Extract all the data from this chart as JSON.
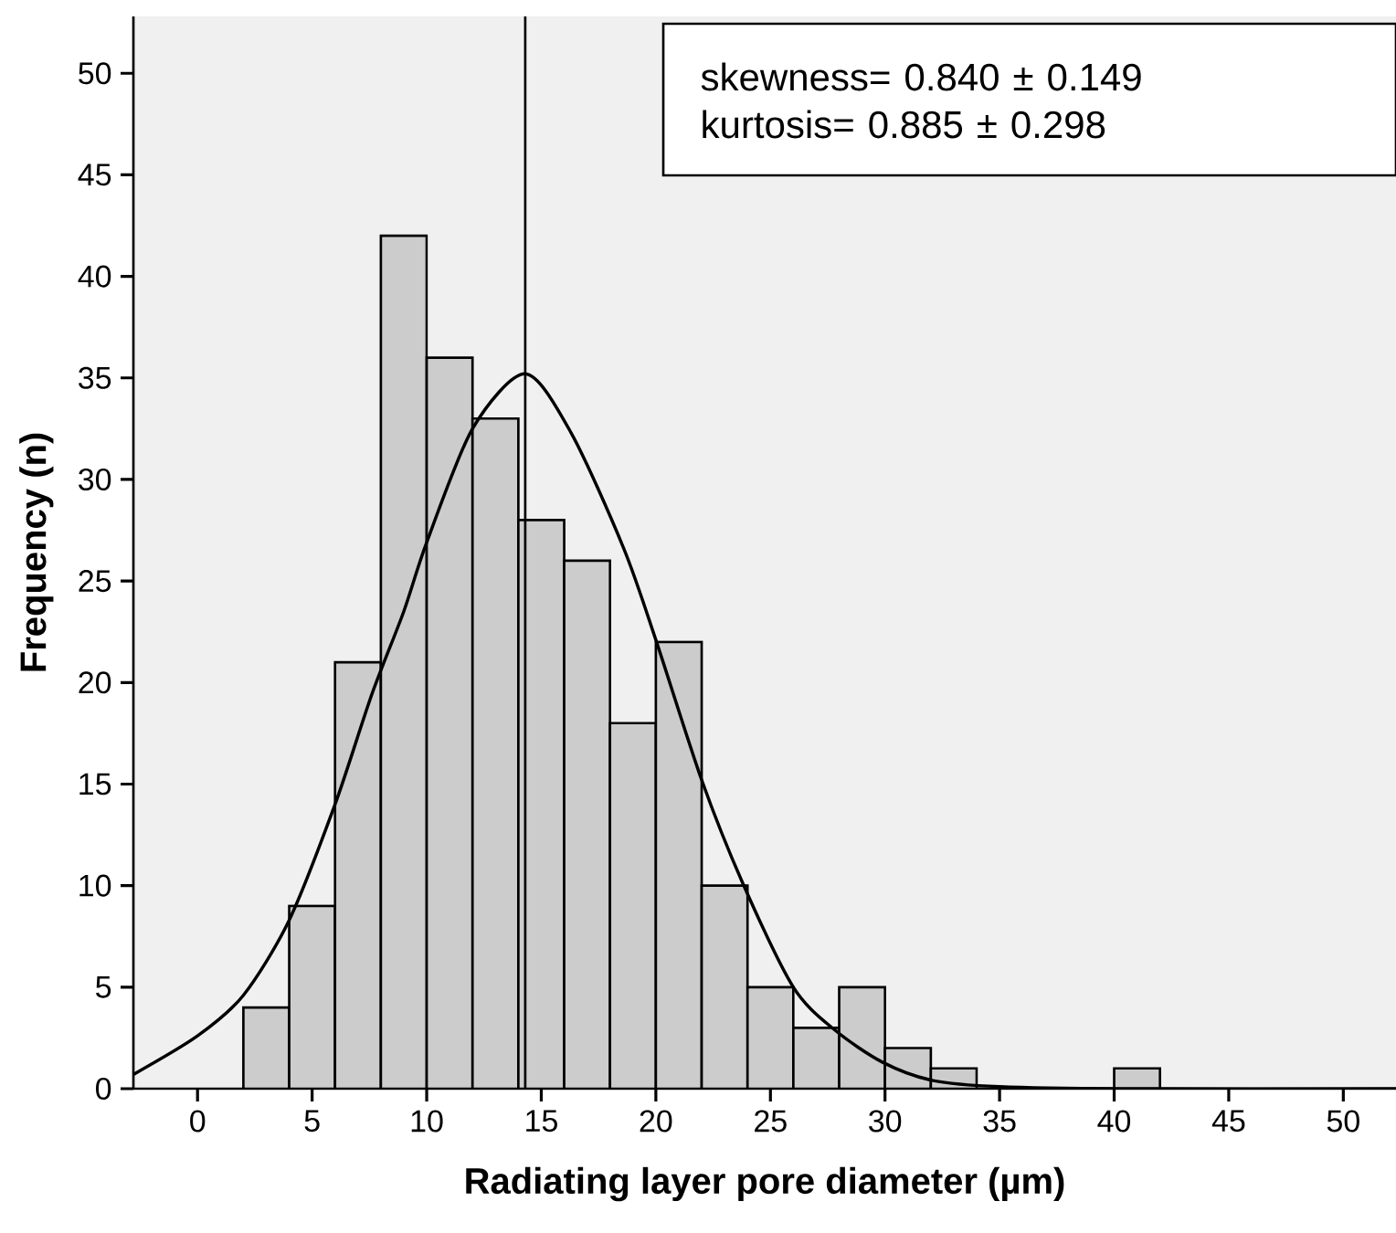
{
  "chart_data": {
    "type": "histogram",
    "xlabel": "Radiating layer pore diameter (µm)",
    "ylabel": "Frequency (n)",
    "bins": [
      2,
      4,
      6,
      8,
      10,
      12,
      14,
      16,
      18,
      20,
      22,
      24,
      26,
      28,
      30,
      32,
      34,
      36,
      38,
      40,
      42
    ],
    "values": [
      4,
      9,
      21,
      42,
      36,
      33,
      28,
      26,
      18,
      22,
      10,
      5,
      3,
      5,
      2,
      1,
      0,
      0,
      0,
      1
    ],
    "color": "#cccccc",
    "series": [
      {
        "type": "line",
        "color": "#000000",
        "x": [
          -2.8,
          0,
          2,
          4,
          6,
          7.6,
          9,
          10,
          12,
          14.3,
          16.3,
          18.6,
          20,
          22,
          23.8,
          26,
          27.8,
          29.9,
          32.1,
          35,
          40.3,
          52.3
        ],
        "values": [
          0.7,
          2.6,
          4.6,
          8.3,
          14.0,
          19.4,
          23.5,
          26.9,
          32.5,
          35.2,
          32.3,
          26.6,
          22.1,
          15.2,
          10.1,
          5.0,
          2.9,
          1.3,
          0.4,
          0.1,
          0,
          0
        ]
      }
    ],
    "ref_lines": [
      {
        "axis": "x",
        "value": 14.3,
        "color": "#000000"
      }
    ],
    "annotations": [
      "skewness= 0.840 ± 0.149",
      "kurtosis= 0.885 ± 0.298"
    ],
    "xlim": [
      -2.8,
      52.3
    ],
    "ylim": [
      0,
      52.8
    ],
    "xticks": [
      0,
      5,
      10,
      15,
      20,
      25,
      30,
      35,
      40,
      45,
      50
    ],
    "yticks": [
      0,
      5,
      10,
      15,
      20,
      25,
      30,
      35,
      40,
      45,
      50
    ],
    "grid": false
  }
}
